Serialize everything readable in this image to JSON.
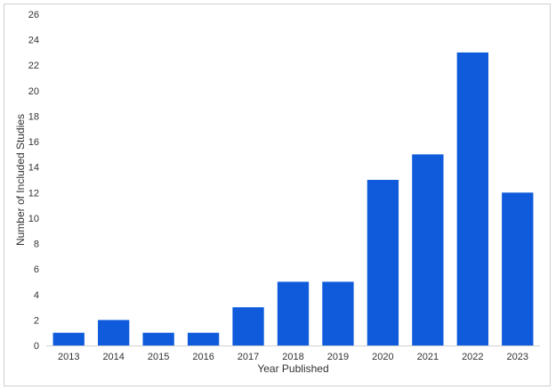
{
  "chart_data": {
    "type": "bar",
    "categories": [
      "2013",
      "2014",
      "2015",
      "2016",
      "2017",
      "2018",
      "2019",
      "2020",
      "2021",
      "2022",
      "2023"
    ],
    "values": [
      1,
      2,
      1,
      1,
      3,
      5,
      5,
      13,
      15,
      23,
      12
    ],
    "xlabel": "Year Published",
    "ylabel": "Number of Included Studies",
    "ylim": [
      0,
      26
    ],
    "yticks": [
      0,
      2,
      4,
      6,
      8,
      10,
      12,
      14,
      16,
      18,
      20,
      22,
      24,
      26
    ],
    "grid": false,
    "bar_color": "#0f5bdc"
  }
}
